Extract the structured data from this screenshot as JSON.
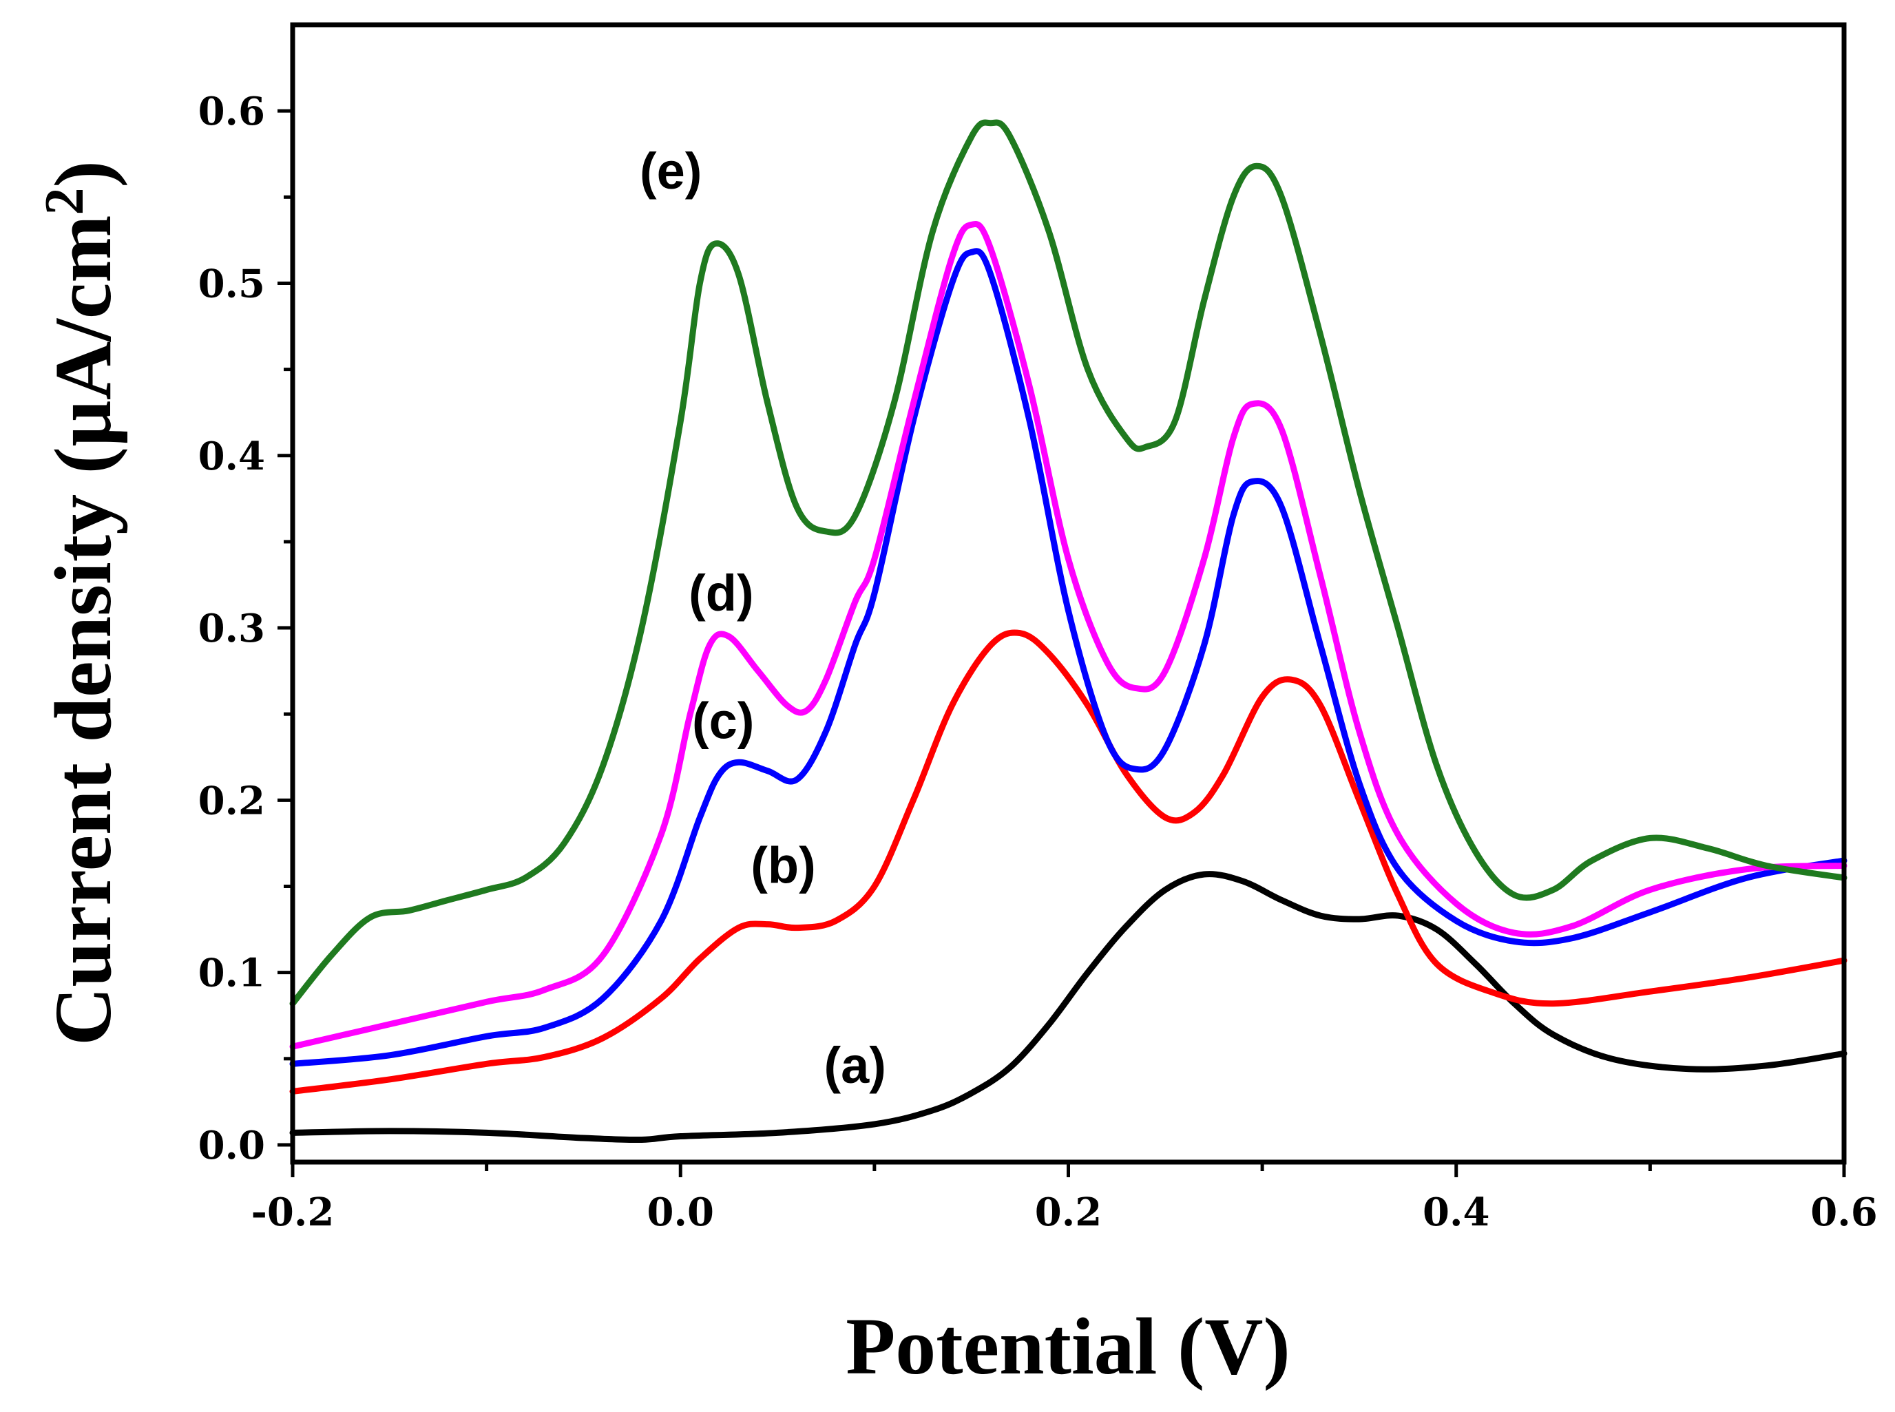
{
  "chart_data": {
    "type": "line",
    "title": "",
    "xlabel": "Potential (V)",
    "ylabel": "Current density (µA/cm",
    "ylabel_superscript": "2",
    "ylabel_close": ")",
    "xlim": [
      -0.2,
      0.6
    ],
    "ylim": [
      -0.01,
      0.65
    ],
    "x_ticks": [
      -0.2,
      0.0,
      0.2,
      0.4,
      0.6
    ],
    "x_tick_labels": [
      "-0.2",
      "0.0",
      "0.2",
      "0.4",
      "0.6"
    ],
    "x_minor_ticks": [
      -0.1,
      0.1,
      0.3,
      0.5
    ],
    "y_ticks": [
      0.0,
      0.1,
      0.2,
      0.3,
      0.4,
      0.5,
      0.6
    ],
    "y_tick_labels": [
      "0.0",
      "0.1",
      "0.2",
      "0.3",
      "0.4",
      "0.5",
      "0.6"
    ],
    "y_minor_ticks": [
      0.05,
      0.15,
      0.25,
      0.35,
      0.45,
      0.55
    ],
    "grid": false,
    "series": [
      {
        "name": "(a)",
        "color": "#000000",
        "label_at": [
          0.09,
          0.036
        ],
        "points": [
          [
            -0.2,
            0.007
          ],
          [
            -0.15,
            0.008
          ],
          [
            -0.1,
            0.007
          ],
          [
            -0.05,
            0.004
          ],
          [
            -0.02,
            0.003
          ],
          [
            0.0,
            0.005
          ],
          [
            0.05,
            0.007
          ],
          [
            0.1,
            0.012
          ],
          [
            0.13,
            0.02
          ],
          [
            0.15,
            0.03
          ],
          [
            0.17,
            0.045
          ],
          [
            0.19,
            0.07
          ],
          [
            0.21,
            0.1
          ],
          [
            0.23,
            0.127
          ],
          [
            0.25,
            0.148
          ],
          [
            0.27,
            0.157
          ],
          [
            0.29,
            0.153
          ],
          [
            0.31,
            0.142
          ],
          [
            0.33,
            0.133
          ],
          [
            0.35,
            0.131
          ],
          [
            0.37,
            0.133
          ],
          [
            0.39,
            0.125
          ],
          [
            0.41,
            0.105
          ],
          [
            0.43,
            0.082
          ],
          [
            0.45,
            0.064
          ],
          [
            0.48,
            0.05
          ],
          [
            0.52,
            0.044
          ],
          [
            0.56,
            0.046
          ],
          [
            0.6,
            0.053
          ]
        ]
      },
      {
        "name": "(b)",
        "color": "#ff0000",
        "label_at": [
          0.053,
          0.152
        ],
        "points": [
          [
            -0.2,
            0.031
          ],
          [
            -0.15,
            0.038
          ],
          [
            -0.1,
            0.047
          ],
          [
            -0.07,
            0.051
          ],
          [
            -0.04,
            0.062
          ],
          [
            -0.01,
            0.085
          ],
          [
            0.01,
            0.108
          ],
          [
            0.03,
            0.126
          ],
          [
            0.045,
            0.128
          ],
          [
            0.06,
            0.126
          ],
          [
            0.08,
            0.13
          ],
          [
            0.1,
            0.15
          ],
          [
            0.12,
            0.2
          ],
          [
            0.14,
            0.255
          ],
          [
            0.16,
            0.29
          ],
          [
            0.175,
            0.297
          ],
          [
            0.19,
            0.285
          ],
          [
            0.21,
            0.255
          ],
          [
            0.23,
            0.215
          ],
          [
            0.25,
            0.19
          ],
          [
            0.265,
            0.193
          ],
          [
            0.28,
            0.215
          ],
          [
            0.3,
            0.26
          ],
          [
            0.315,
            0.27
          ],
          [
            0.33,
            0.255
          ],
          [
            0.35,
            0.2
          ],
          [
            0.37,
            0.145
          ],
          [
            0.39,
            0.105
          ],
          [
            0.42,
            0.088
          ],
          [
            0.45,
            0.082
          ],
          [
            0.5,
            0.089
          ],
          [
            0.55,
            0.097
          ],
          [
            0.6,
            0.107
          ]
        ]
      },
      {
        "name": "(c)",
        "color": "#0000ff",
        "label_at": [
          0.022,
          0.236
        ],
        "points": [
          [
            -0.2,
            0.047
          ],
          [
            -0.15,
            0.052
          ],
          [
            -0.1,
            0.063
          ],
          [
            -0.07,
            0.068
          ],
          [
            -0.04,
            0.085
          ],
          [
            -0.01,
            0.13
          ],
          [
            0.01,
            0.19
          ],
          [
            0.02,
            0.215
          ],
          [
            0.03,
            0.222
          ],
          [
            0.045,
            0.217
          ],
          [
            0.06,
            0.212
          ],
          [
            0.075,
            0.24
          ],
          [
            0.09,
            0.29
          ],
          [
            0.1,
            0.32
          ],
          [
            0.12,
            0.42
          ],
          [
            0.14,
            0.5
          ],
          [
            0.15,
            0.518
          ],
          [
            0.16,
            0.505
          ],
          [
            0.18,
            0.42
          ],
          [
            0.2,
            0.31
          ],
          [
            0.22,
            0.235
          ],
          [
            0.235,
            0.218
          ],
          [
            0.25,
            0.23
          ],
          [
            0.27,
            0.29
          ],
          [
            0.285,
            0.365
          ],
          [
            0.295,
            0.385
          ],
          [
            0.31,
            0.37
          ],
          [
            0.33,
            0.29
          ],
          [
            0.35,
            0.21
          ],
          [
            0.37,
            0.16
          ],
          [
            0.4,
            0.13
          ],
          [
            0.43,
            0.118
          ],
          [
            0.46,
            0.12
          ],
          [
            0.5,
            0.135
          ],
          [
            0.55,
            0.155
          ],
          [
            0.6,
            0.165
          ]
        ]
      },
      {
        "name": "(d)",
        "color": "#ff00ff",
        "label_at": [
          0.021,
          0.31
        ],
        "points": [
          [
            -0.2,
            0.057
          ],
          [
            -0.15,
            0.07
          ],
          [
            -0.1,
            0.083
          ],
          [
            -0.07,
            0.09
          ],
          [
            -0.04,
            0.11
          ],
          [
            -0.01,
            0.18
          ],
          [
            0.005,
            0.25
          ],
          [
            0.015,
            0.29
          ],
          [
            0.025,
            0.295
          ],
          [
            0.04,
            0.275
          ],
          [
            0.055,
            0.255
          ],
          [
            0.065,
            0.252
          ],
          [
            0.075,
            0.27
          ],
          [
            0.09,
            0.315
          ],
          [
            0.1,
            0.34
          ],
          [
            0.12,
            0.43
          ],
          [
            0.14,
            0.515
          ],
          [
            0.15,
            0.534
          ],
          [
            0.16,
            0.52
          ],
          [
            0.18,
            0.44
          ],
          [
            0.2,
            0.34
          ],
          [
            0.22,
            0.28
          ],
          [
            0.235,
            0.265
          ],
          [
            0.25,
            0.275
          ],
          [
            0.27,
            0.34
          ],
          [
            0.285,
            0.41
          ],
          [
            0.295,
            0.43
          ],
          [
            0.31,
            0.415
          ],
          [
            0.33,
            0.33
          ],
          [
            0.35,
            0.24
          ],
          [
            0.37,
            0.18
          ],
          [
            0.4,
            0.14
          ],
          [
            0.43,
            0.123
          ],
          [
            0.46,
            0.127
          ],
          [
            0.5,
            0.148
          ],
          [
            0.55,
            0.16
          ],
          [
            0.6,
            0.162
          ]
        ]
      },
      {
        "name": "(e)",
        "color": "#1f7a1f",
        "label_at": [
          -0.005,
          0.555
        ],
        "points": [
          [
            -0.2,
            0.082
          ],
          [
            -0.18,
            0.11
          ],
          [
            -0.16,
            0.132
          ],
          [
            -0.14,
            0.136
          ],
          [
            -0.12,
            0.142
          ],
          [
            -0.1,
            0.148
          ],
          [
            -0.08,
            0.155
          ],
          [
            -0.06,
            0.175
          ],
          [
            -0.04,
            0.22
          ],
          [
            -0.02,
            0.3
          ],
          [
            0.0,
            0.42
          ],
          [
            0.01,
            0.5
          ],
          [
            0.018,
            0.523
          ],
          [
            0.03,
            0.505
          ],
          [
            0.045,
            0.43
          ],
          [
            0.06,
            0.37
          ],
          [
            0.075,
            0.356
          ],
          [
            0.09,
            0.365
          ],
          [
            0.11,
            0.43
          ],
          [
            0.13,
            0.53
          ],
          [
            0.15,
            0.585
          ],
          [
            0.16,
            0.593
          ],
          [
            0.17,
            0.585
          ],
          [
            0.19,
            0.53
          ],
          [
            0.21,
            0.45
          ],
          [
            0.23,
            0.41
          ],
          [
            0.24,
            0.405
          ],
          [
            0.255,
            0.42
          ],
          [
            0.27,
            0.49
          ],
          [
            0.285,
            0.55
          ],
          [
            0.297,
            0.568
          ],
          [
            0.31,
            0.55
          ],
          [
            0.33,
            0.47
          ],
          [
            0.35,
            0.38
          ],
          [
            0.37,
            0.3
          ],
          [
            0.39,
            0.22
          ],
          [
            0.41,
            0.17
          ],
          [
            0.43,
            0.145
          ],
          [
            0.45,
            0.148
          ],
          [
            0.47,
            0.165
          ],
          [
            0.5,
            0.178
          ],
          [
            0.53,
            0.172
          ],
          [
            0.56,
            0.162
          ],
          [
            0.6,
            0.155
          ]
        ]
      }
    ]
  }
}
